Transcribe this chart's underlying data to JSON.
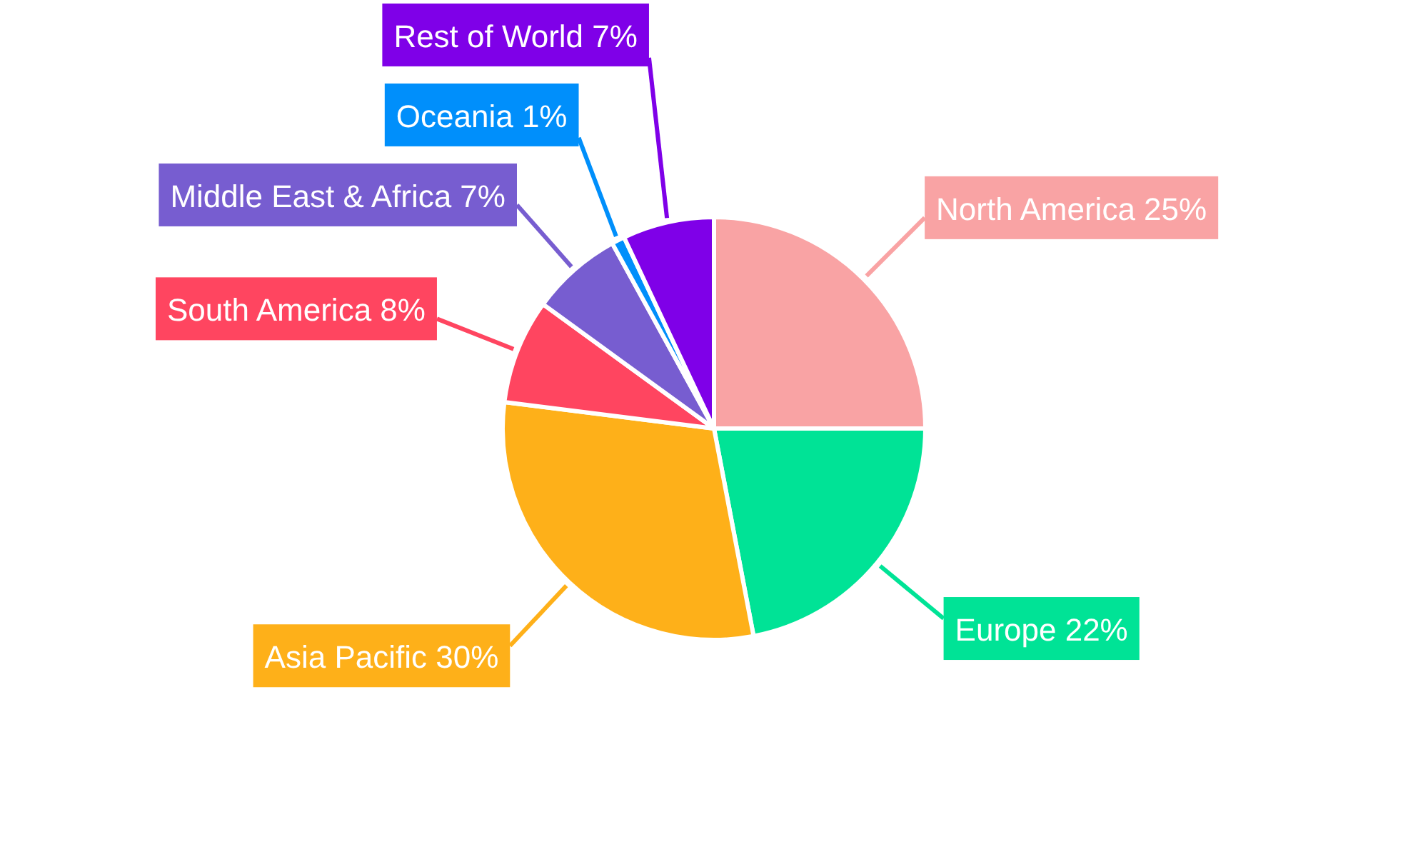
{
  "chart_data": {
    "type": "pie",
    "categories": [
      "North America",
      "Europe",
      "Asia Pacific",
      "South America",
      "Middle East & Africa",
      "Oceania",
      "Rest of World"
    ],
    "values": [
      25,
      22,
      30,
      8,
      7,
      1,
      7
    ],
    "colors": [
      "#f9a3a4",
      "#00e396",
      "#feb019",
      "#ff4560",
      "#775dd0",
      "#008ffb",
      "#7f00e8"
    ],
    "value_labels": [
      "25%",
      "22%",
      "30%",
      "8%",
      "7%",
      "1%",
      "7%"
    ]
  }
}
